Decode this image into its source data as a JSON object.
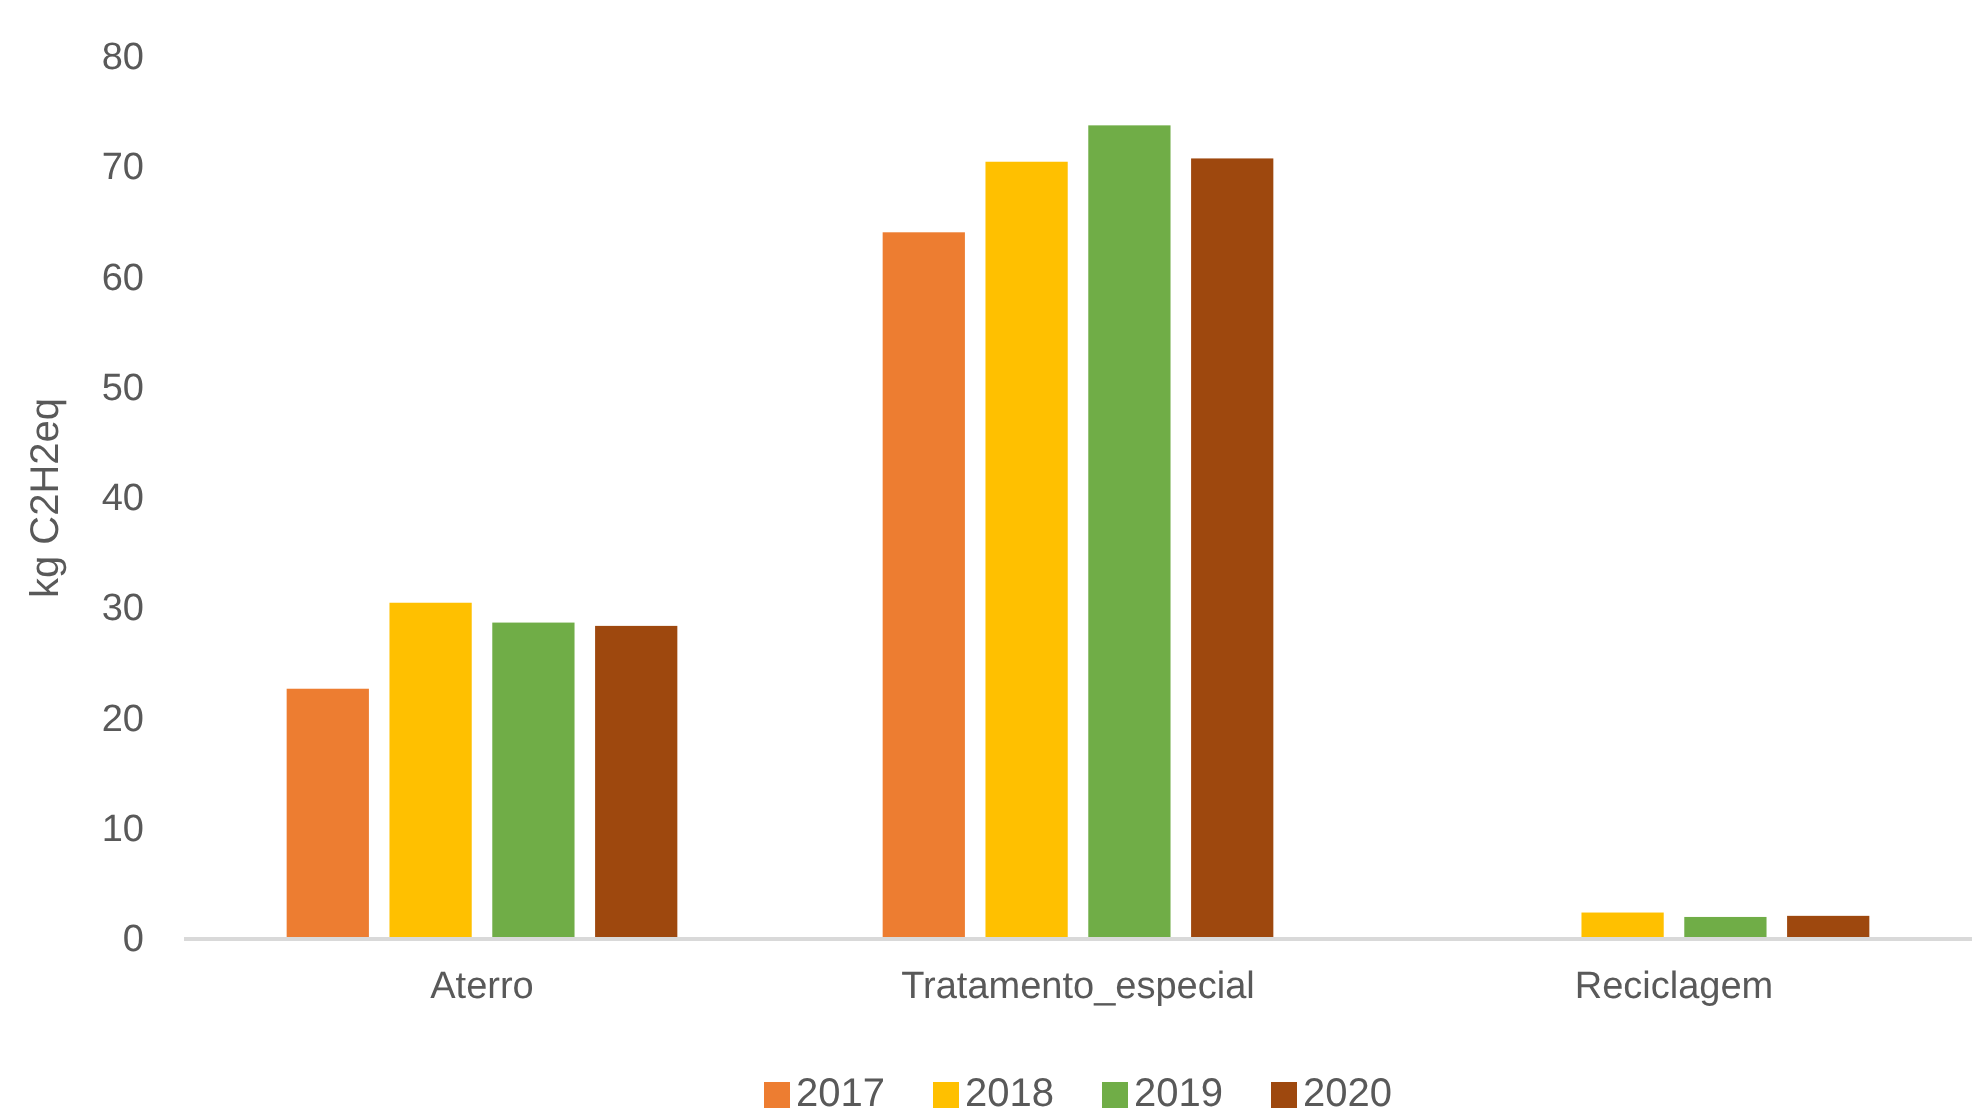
{
  "chart_data": {
    "type": "bar",
    "ylabel": "kg C2H2eq",
    "categories": [
      "Aterro",
      "Tratamento_especial",
      "Reciclagem"
    ],
    "series": [
      {
        "name": "2017",
        "color": "#ed7d31",
        "values": [
          22.7,
          64.1,
          null
        ]
      },
      {
        "name": "2018",
        "color": "#ffc000",
        "values": [
          30.5,
          70.5,
          2.4
        ]
      },
      {
        "name": "2019",
        "color": "#70ad47",
        "values": [
          28.7,
          73.8,
          2.0
        ]
      },
      {
        "name": "2020",
        "color": "#9e480e",
        "values": [
          28.4,
          70.8,
          2.1
        ]
      }
    ],
    "ylim": [
      0,
      80
    ],
    "yticks": [
      0,
      10,
      20,
      30,
      40,
      50,
      60,
      70,
      80
    ],
    "grid": false,
    "legend": "bottom"
  }
}
